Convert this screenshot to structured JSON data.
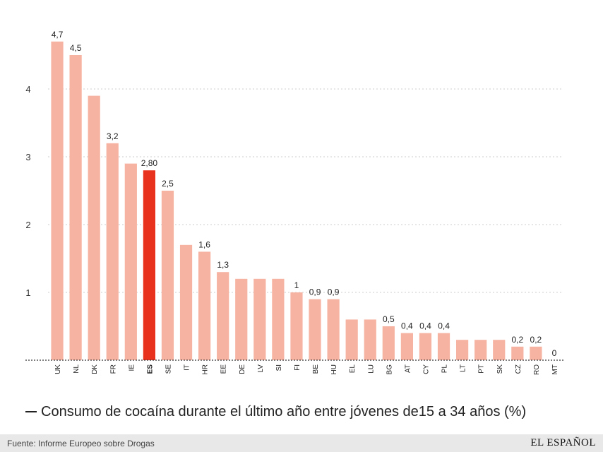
{
  "chart_data": {
    "type": "bar",
    "categories": [
      "UK",
      "NL",
      "DK",
      "FR",
      "IE",
      "ES",
      "SE",
      "IT",
      "HR",
      "EE",
      "DE",
      "LV",
      "SI",
      "FI",
      "BE",
      "HU",
      "EL",
      "LU",
      "BG",
      "AT",
      "CY",
      "PL",
      "LT",
      "PT",
      "SK",
      "CZ",
      "RO",
      "MT"
    ],
    "values": [
      4.7,
      4.5,
      3.9,
      3.2,
      2.9,
      2.8,
      2.5,
      1.7,
      1.6,
      1.3,
      1.2,
      1.2,
      1.2,
      1.0,
      0.9,
      0.9,
      0.6,
      0.6,
      0.5,
      0.4,
      0.4,
      0.4,
      0.3,
      0.3,
      0.3,
      0.2,
      0.2,
      0
    ],
    "data_labels": [
      "4,7",
      "4,5",
      "",
      "3,2",
      "",
      "2,80",
      "2,5",
      "",
      "1,6",
      "1,3",
      "",
      "",
      "",
      "1",
      "0,9",
      "0,9",
      "",
      "",
      "0,5",
      "0,4",
      "0,4",
      "0,4",
      "",
      "",
      "",
      "0,2",
      "0,2",
      "0"
    ],
    "highlight": "ES",
    "ylim": [
      0,
      5
    ],
    "yticks": [
      1,
      2,
      3,
      4
    ],
    "ytick_labels": [
      "1",
      "2",
      "3",
      "4"
    ],
    "grid": true,
    "colors": {
      "bar": "#f7b3a2",
      "highlight": "#e8321e",
      "grid": "#cccccc",
      "axis": "#333333"
    }
  },
  "legend": {
    "label": "Consumo de cocaína durante el último año entre jóvenes de15 a 34 años (%)"
  },
  "footer": {
    "source": "Fuente: Informe Europeo sobre Drogas",
    "brand": "EL ESPAÑOL"
  }
}
